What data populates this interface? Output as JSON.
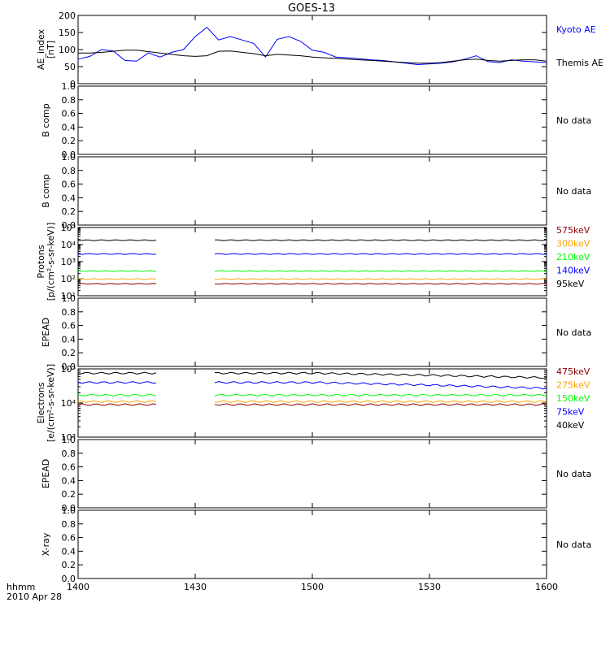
{
  "title": "GOES-13",
  "time_axis": {
    "unit_label": "hhmm",
    "date_label": "2010 Apr 28",
    "ticks": [
      "1400",
      "1430",
      "1500",
      "1530",
      "1600"
    ]
  },
  "chart_data": [
    {
      "id": "ae",
      "type": "line",
      "ylabel": [
        "AE_index",
        "[nT]"
      ],
      "ylim": [
        0,
        200
      ],
      "yscale": "linear",
      "yticks": [
        0,
        50,
        100,
        150,
        200
      ],
      "xlim": [
        0,
        120
      ],
      "series": [
        {
          "name": "Kyoto AE",
          "color": "#0000ff",
          "x": [
            0,
            3,
            6,
            9,
            12,
            15,
            18,
            21,
            24,
            27,
            30,
            33,
            36,
            39,
            42,
            45,
            48,
            51,
            54,
            57,
            60,
            63,
            66,
            69,
            72,
            75,
            78,
            81,
            84,
            87,
            90,
            93,
            96,
            99,
            102,
            105,
            108,
            111,
            114,
            117,
            120
          ],
          "y": [
            72,
            80,
            100,
            96,
            68,
            66,
            90,
            78,
            92,
            100,
            138,
            165,
            128,
            138,
            128,
            118,
            78,
            130,
            138,
            124,
            98,
            92,
            78,
            76,
            73,
            70,
            68,
            64,
            60,
            56,
            58,
            60,
            64,
            72,
            82,
            65,
            62,
            70,
            66,
            64,
            62
          ],
          "note_spikes": []
        },
        {
          "name": "Themis AE",
          "color": "#000000",
          "x": [
            0,
            3,
            6,
            9,
            12,
            15,
            18,
            21,
            24,
            27,
            30,
            33,
            36,
            39,
            42,
            45,
            48,
            51,
            54,
            57,
            60,
            63,
            66,
            69,
            72,
            75,
            78,
            81,
            84,
            87,
            90,
            93,
            96,
            99,
            102,
            105,
            108,
            111,
            114,
            117,
            120
          ],
          "y": [
            90,
            90,
            92,
            95,
            98,
            98,
            94,
            90,
            86,
            82,
            80,
            82,
            95,
            96,
            92,
            88,
            82,
            86,
            84,
            82,
            78,
            76,
            74,
            72,
            70,
            68,
            66,
            64,
            62,
            60,
            60,
            62,
            66,
            70,
            72,
            68,
            66,
            68,
            70,
            70,
            66
          ]
        }
      ],
      "legend": [
        "Kyoto AE",
        "Themis AE"
      ]
    },
    {
      "id": "bcomp1",
      "type": "line",
      "ylabel": [
        "B comp"
      ],
      "ylim": [
        0,
        1
      ],
      "yscale": "linear",
      "yticks": [
        "0.0",
        "0.2",
        "0.4",
        "0.6",
        "0.8",
        "1.0"
      ],
      "series": [],
      "status_text": "No data"
    },
    {
      "id": "bcomp2",
      "type": "line",
      "ylabel": [
        "B comp"
      ],
      "ylim": [
        0,
        1
      ],
      "yscale": "linear",
      "yticks": [
        "0.0",
        "0.2",
        "0.4",
        "0.6",
        "0.8",
        "1.0"
      ],
      "series": [],
      "status_text": "No data"
    },
    {
      "id": "protons",
      "type": "line",
      "ylabel": [
        "Protons",
        "[p/(cm²-s-sr-keV)]"
      ],
      "ylim": [
        10,
        100000
      ],
      "yscale": "log",
      "yticks": [
        "10¹",
        "10²",
        "10³",
        "10⁴",
        "10⁵"
      ],
      "gaps": [
        [
          20,
          35
        ]
      ],
      "series": [
        {
          "name": "575keV",
          "color": "#8b0000",
          "level": 50
        },
        {
          "name": "300keV",
          "color": "#ffa500",
          "level": 95
        },
        {
          "name": "210keV",
          "color": "#00ff00",
          "level": 280
        },
        {
          "name": "140keV",
          "color": "#0000ff",
          "level": 2800
        },
        {
          "name": "95keV",
          "color": "#000000",
          "level": 18000
        }
      ]
    },
    {
      "id": "epead1",
      "type": "line",
      "ylabel": [
        "EPEAD"
      ],
      "ylim": [
        0,
        1
      ],
      "yscale": "linear",
      "yticks": [
        "0.0",
        "0.2",
        "0.4",
        "0.6",
        "0.8",
        "1.0"
      ],
      "series": [],
      "status_text": "No data"
    },
    {
      "id": "electrons",
      "type": "line",
      "ylabel": [
        "Electrons",
        "[e/(cm²-s-sr-keV)]"
      ],
      "ylim": [
        1000,
        100000
      ],
      "yscale": "log",
      "yticks": [
        "10³",
        "10⁴",
        "10⁵"
      ],
      "gaps": [
        [
          20,
          35
        ]
      ],
      "series": [
        {
          "name": "475keV",
          "color": "#8b0000",
          "level": 9000
        },
        {
          "name": "275keV",
          "color": "#ffa500",
          "level": 11000
        },
        {
          "name": "150keV",
          "color": "#00ff00",
          "level": 17000
        },
        {
          "name": "75keV",
          "color": "#0000ff",
          "level": 40000,
          "end_level": 27000
        },
        {
          "name": "40keV",
          "color": "#000000",
          "level": 75000,
          "end_level": 55000
        }
      ]
    },
    {
      "id": "epead2",
      "type": "line",
      "ylabel": [
        "EPEAD"
      ],
      "ylim": [
        0,
        1
      ],
      "yscale": "linear",
      "yticks": [
        "0.0",
        "0.2",
        "0.4",
        "0.6",
        "0.8",
        "1.0"
      ],
      "series": [],
      "status_text": "No data"
    },
    {
      "id": "xray",
      "type": "line",
      "ylabel": [
        "X-ray"
      ],
      "ylim": [
        0,
        1
      ],
      "yscale": "linear",
      "yticks": [
        "0.0",
        "0.2",
        "0.4",
        "0.6",
        "0.8",
        "1.0"
      ],
      "series": [],
      "status_text": "No data"
    }
  ]
}
